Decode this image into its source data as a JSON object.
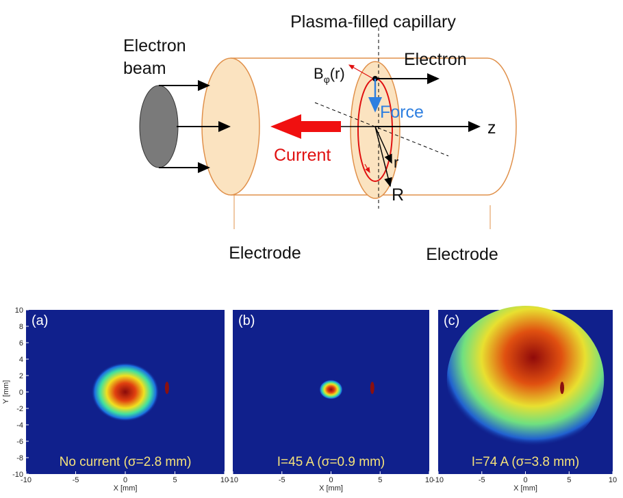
{
  "diagram": {
    "title": "Plasma-filled capillary",
    "beam_label": [
      "Electron",
      "beam"
    ],
    "electron_label": "Electron",
    "field_label": {
      "base": "B",
      "sub": "φ",
      "arg": "(r)"
    },
    "force_label": "Force",
    "z_label": "z",
    "current_label": "Current",
    "r_label": "r",
    "R_label": "R",
    "electrode_left": "Electrode",
    "electrode_right": "Electrode"
  },
  "panels": [
    {
      "tag": "(a)",
      "caption": "No current (σ=2.8 mm)"
    },
    {
      "tag": "(b)",
      "caption": "I=45 A (σ=0.9 mm)"
    },
    {
      "tag": "(c)",
      "caption": "I=74 A (σ=3.8 mm)"
    }
  ],
  "axes": {
    "xlabel": "X [mm]",
    "ylabel": "Y [mm]",
    "xlim": [
      -10,
      10
    ],
    "ylim": [
      -10,
      10
    ],
    "xticks": [
      -10,
      -5,
      0,
      5,
      10
    ],
    "yticks": [
      -10,
      -8,
      -6,
      -4,
      -2,
      0,
      2,
      4,
      6,
      8,
      10
    ]
  }
}
